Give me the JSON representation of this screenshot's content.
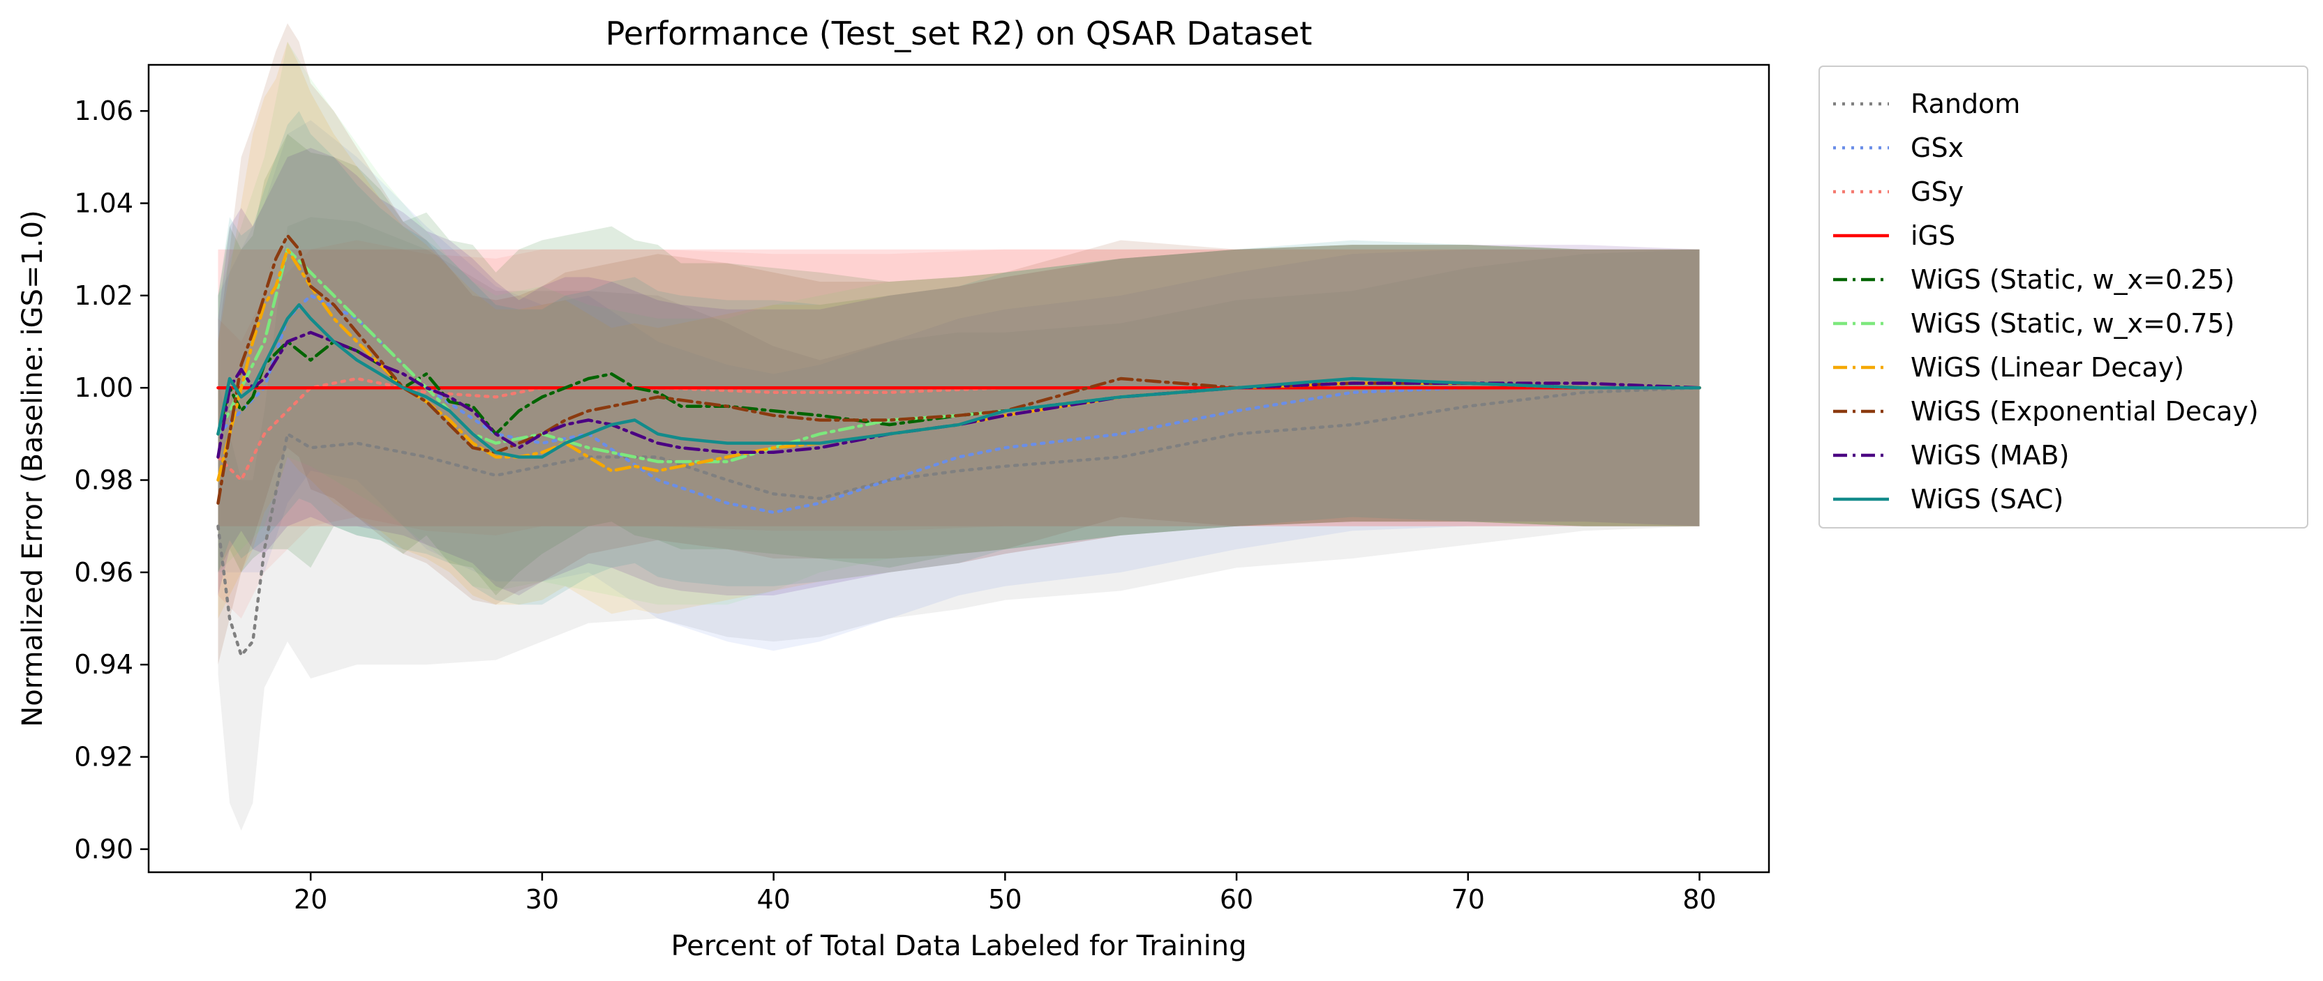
{
  "chart_data": {
    "type": "line",
    "title": "Performance (Test_set R2) on QSAR Dataset",
    "xlabel": "Percent of Total Data Labeled for Training",
    "ylabel": "Normalized Error (Baseline: iGS=1.0)",
    "xlim": [
      13,
      83
    ],
    "ylim": [
      0.895,
      1.07
    ],
    "xticks": [
      20,
      30,
      40,
      50,
      60,
      70,
      80
    ],
    "yticks": [
      0.9,
      0.92,
      0.94,
      0.96,
      0.98,
      1.0,
      1.02,
      1.04,
      1.06
    ],
    "ytick_labels": [
      "0.90",
      "0.92",
      "0.94",
      "0.96",
      "0.98",
      "1.00",
      "1.02",
      "1.04",
      "1.06"
    ],
    "grid": false,
    "legend_position": "outside-right",
    "series": [
      {
        "name": "Random",
        "color": "#808080",
        "dash": "dotted",
        "x": [
          16,
          16.5,
          17,
          17.5,
          18,
          19,
          20,
          22,
          25,
          28,
          30,
          32,
          35,
          38,
          40,
          42,
          45,
          48,
          50,
          55,
          60,
          65,
          70,
          75,
          80
        ],
        "y": [
          0.97,
          0.95,
          0.942,
          0.945,
          0.965,
          0.99,
          0.987,
          0.988,
          0.985,
          0.981,
          0.983,
          0.985,
          0.985,
          0.98,
          0.977,
          0.976,
          0.98,
          0.982,
          0.983,
          0.985,
          0.99,
          0.992,
          0.996,
          0.999,
          1.0
        ],
        "band": [
          0.032,
          0.04,
          0.038,
          0.035,
          0.03,
          0.045,
          0.05,
          0.048,
          0.045,
          0.04,
          0.038,
          0.036,
          0.035,
          0.034,
          0.032,
          0.03,
          0.03,
          0.03,
          0.029,
          0.029,
          0.029,
          0.029,
          0.03,
          0.03,
          0.03
        ]
      },
      {
        "name": "GSx",
        "color": "#6a8ee8",
        "dash": "dotted",
        "x": [
          16,
          17,
          18,
          19,
          20,
          22,
          25,
          28,
          30,
          32,
          35,
          38,
          40,
          42,
          45,
          48,
          50,
          55,
          60,
          65,
          70,
          75,
          80
        ],
        "y": [
          0.99,
          0.995,
          1.0,
          1.015,
          1.02,
          1.015,
          1.0,
          0.99,
          0.988,
          0.99,
          0.98,
          0.975,
          0.973,
          0.975,
          0.98,
          0.985,
          0.987,
          0.99,
          0.995,
          0.999,
          1.0,
          1.0,
          1.0
        ],
        "band": [
          0.03,
          0.035,
          0.04,
          0.04,
          0.038,
          0.035,
          0.035,
          0.032,
          0.03,
          0.03,
          0.03,
          0.03,
          0.03,
          0.03,
          0.03,
          0.03,
          0.03,
          0.03,
          0.03,
          0.03,
          0.03,
          0.03,
          0.03
        ]
      },
      {
        "name": "GSy",
        "color": "#f47a70",
        "dash": "dotted",
        "x": [
          16,
          17,
          18,
          19,
          20,
          22,
          25,
          28,
          30,
          35,
          40,
          45,
          50,
          55,
          60,
          65,
          70,
          75,
          80
        ],
        "y": [
          0.985,
          0.98,
          0.99,
          0.995,
          1.0,
          1.002,
          0.999,
          0.998,
          1.0,
          1.0,
          0.999,
          0.999,
          1.0,
          1.0,
          1.0,
          1.0,
          1.0,
          1.0,
          1.0
        ],
        "band": [
          0.03,
          0.03,
          0.03,
          0.03,
          0.03,
          0.03,
          0.03,
          0.03,
          0.03,
          0.03,
          0.03,
          0.03,
          0.03,
          0.03,
          0.03,
          0.03,
          0.03,
          0.03,
          0.03
        ]
      },
      {
        "name": "iGS",
        "color": "#ff0000",
        "dash": "solid",
        "x": [
          16,
          80
        ],
        "y": [
          1.0,
          1.0
        ],
        "band": [
          0.03,
          0.03
        ]
      },
      {
        "name": "WiGS (Static, w_x=0.25)",
        "color": "#006400",
        "dash": "dashdot",
        "x": [
          16,
          16.5,
          17,
          17.5,
          18,
          19,
          20,
          21,
          22,
          23,
          24,
          25,
          26,
          27,
          28,
          29,
          30,
          31,
          32,
          33,
          34,
          35,
          36,
          38,
          40,
          42,
          45,
          48,
          50,
          55,
          60,
          65,
          70,
          75,
          80
        ],
        "y": [
          0.99,
          1.0,
          0.995,
          0.998,
          1.005,
          1.01,
          1.006,
          1.01,
          1.008,
          1.005,
          1.0,
          1.003,
          0.997,
          0.996,
          0.99,
          0.995,
          0.998,
          1.0,
          1.002,
          1.003,
          1.0,
          0.999,
          0.996,
          0.996,
          0.995,
          0.994,
          0.992,
          0.994,
          0.995,
          0.998,
          1.0,
          1.001,
          1.001,
          1.0,
          1.0
        ],
        "band": [
          0.03,
          0.035,
          0.035,
          0.035,
          0.04,
          0.045,
          0.045,
          0.04,
          0.04,
          0.038,
          0.036,
          0.035,
          0.035,
          0.035,
          0.035,
          0.035,
          0.034,
          0.033,
          0.032,
          0.032,
          0.032,
          0.032,
          0.031,
          0.031,
          0.031,
          0.031,
          0.031,
          0.03,
          0.03,
          0.03,
          0.03,
          0.03,
          0.03,
          0.03,
          0.03
        ]
      },
      {
        "name": "WiGS (Static, w_x=0.75)",
        "color": "#7de87d",
        "dash": "dashdot",
        "x": [
          16,
          17,
          18,
          19,
          20,
          21,
          22,
          23,
          24,
          25,
          26,
          27,
          28,
          30,
          32,
          35,
          38,
          40,
          42,
          45,
          48,
          50,
          55,
          60,
          65,
          70,
          75,
          80
        ],
        "y": [
          0.99,
          1.0,
          1.01,
          1.03,
          1.025,
          1.02,
          1.015,
          1.01,
          1.005,
          1.0,
          0.995,
          0.99,
          0.988,
          0.99,
          0.987,
          0.984,
          0.984,
          0.987,
          0.99,
          0.993,
          0.994,
          0.995,
          0.998,
          1.0,
          1.001,
          1.001,
          1.0,
          1.0
        ],
        "band": [
          0.03,
          0.035,
          0.04,
          0.045,
          0.042,
          0.04,
          0.038,
          0.036,
          0.035,
          0.034,
          0.033,
          0.033,
          0.032,
          0.032,
          0.031,
          0.031,
          0.031,
          0.031,
          0.03,
          0.03,
          0.03,
          0.03,
          0.03,
          0.03,
          0.03,
          0.03,
          0.03,
          0.03
        ]
      },
      {
        "name": "WiGS (Linear Decay)",
        "color": "#f5a800",
        "dash": "dashdot",
        "x": [
          16,
          16.5,
          17,
          17.5,
          18,
          18.5,
          19,
          19.5,
          20,
          21,
          22,
          23,
          24,
          25,
          26,
          27,
          28,
          29,
          30,
          31,
          32,
          33,
          34,
          35,
          36,
          38,
          40,
          42,
          45,
          48,
          50,
          55,
          60,
          65,
          70,
          75,
          80
        ],
        "y": [
          0.98,
          0.99,
          1.0,
          1.01,
          1.018,
          1.022,
          1.03,
          1.026,
          1.022,
          1.015,
          1.01,
          1.005,
          1.0,
          0.997,
          0.993,
          0.988,
          0.985,
          0.985,
          0.986,
          0.988,
          0.985,
          0.982,
          0.983,
          0.982,
          0.983,
          0.985,
          0.987,
          0.988,
          0.99,
          0.992,
          0.994,
          0.998,
          1.0,
          1.001,
          1.001,
          1.0,
          1.0
        ],
        "band": [
          0.03,
          0.035,
          0.04,
          0.045,
          0.045,
          0.045,
          0.045,
          0.044,
          0.042,
          0.04,
          0.038,
          0.036,
          0.035,
          0.034,
          0.033,
          0.033,
          0.032,
          0.032,
          0.032,
          0.031,
          0.031,
          0.031,
          0.031,
          0.031,
          0.031,
          0.031,
          0.031,
          0.03,
          0.03,
          0.03,
          0.03,
          0.03,
          0.03,
          0.03,
          0.03,
          0.03,
          0.03
        ]
      },
      {
        "name": "WiGS (Exponential Decay)",
        "color": "#8b3a0f",
        "dash": "dashdot",
        "x": [
          16,
          16.5,
          17,
          17.5,
          18,
          18.5,
          19,
          19.5,
          20,
          21,
          22,
          23,
          24,
          25,
          26,
          27,
          28,
          29,
          30,
          31,
          32,
          33,
          35,
          38,
          40,
          42,
          45,
          48,
          50,
          55,
          60,
          65,
          70,
          75,
          80
        ],
        "y": [
          0.975,
          0.99,
          1.005,
          1.012,
          1.02,
          1.028,
          1.033,
          1.03,
          1.022,
          1.018,
          1.012,
          1.006,
          1.0,
          0.997,
          0.992,
          0.987,
          0.986,
          0.988,
          0.99,
          0.993,
          0.995,
          0.996,
          0.998,
          0.996,
          0.994,
          0.993,
          0.993,
          0.994,
          0.995,
          1.002,
          1.0,
          1.001,
          1.001,
          1.0,
          1.0
        ],
        "band": [
          0.035,
          0.04,
          0.045,
          0.045,
          0.045,
          0.045,
          0.046,
          0.045,
          0.044,
          0.042,
          0.04,
          0.038,
          0.036,
          0.035,
          0.034,
          0.033,
          0.033,
          0.032,
          0.032,
          0.032,
          0.031,
          0.031,
          0.031,
          0.031,
          0.031,
          0.03,
          0.03,
          0.03,
          0.03,
          0.03,
          0.03,
          0.03,
          0.03,
          0.03,
          0.03
        ]
      },
      {
        "name": "WiGS (MAB)",
        "color": "#4b0082",
        "dash": "dashdot",
        "x": [
          16,
          16.5,
          17,
          17.5,
          18,
          19,
          20,
          21,
          22,
          23,
          24,
          25,
          26,
          27,
          28,
          29,
          30,
          31,
          32,
          33,
          34,
          35,
          36,
          38,
          40,
          42,
          45,
          48,
          50,
          55,
          60,
          65,
          70,
          75,
          80
        ],
        "y": [
          0.985,
          1.0,
          1.004,
          1.0,
          1.002,
          1.01,
          1.012,
          1.01,
          1.008,
          1.005,
          1.003,
          1.0,
          0.998,
          0.995,
          0.99,
          0.987,
          0.99,
          0.992,
          0.993,
          0.992,
          0.99,
          0.988,
          0.987,
          0.986,
          0.986,
          0.987,
          0.99,
          0.992,
          0.994,
          0.998,
          1.0,
          1.001,
          1.001,
          1.001,
          1.0
        ],
        "band": [
          0.03,
          0.035,
          0.035,
          0.035,
          0.038,
          0.04,
          0.04,
          0.04,
          0.038,
          0.036,
          0.035,
          0.034,
          0.034,
          0.033,
          0.033,
          0.032,
          0.032,
          0.032,
          0.031,
          0.031,
          0.031,
          0.031,
          0.031,
          0.031,
          0.031,
          0.03,
          0.03,
          0.03,
          0.03,
          0.03,
          0.03,
          0.03,
          0.03,
          0.03,
          0.03
        ]
      },
      {
        "name": "WiGS (SAC)",
        "color": "#138b8b",
        "dash": "solid",
        "x": [
          16,
          16.5,
          17,
          17.5,
          18,
          18.5,
          19,
          19.5,
          20,
          21,
          22,
          23,
          24,
          25,
          26,
          27,
          28,
          29,
          30,
          31,
          32,
          33,
          34,
          35,
          36,
          38,
          40,
          42,
          45,
          48,
          50,
          55,
          60,
          65,
          70,
          75,
          80
        ],
        "y": [
          0.99,
          1.002,
          0.998,
          1.0,
          1.005,
          1.01,
          1.015,
          1.018,
          1.015,
          1.01,
          1.006,
          1.003,
          1.0,
          0.998,
          0.995,
          0.99,
          0.986,
          0.985,
          0.985,
          0.988,
          0.99,
          0.992,
          0.993,
          0.99,
          0.989,
          0.988,
          0.988,
          0.988,
          0.99,
          0.992,
          0.995,
          0.998,
          1.0,
          1.002,
          1.001,
          1.0,
          1.0
        ],
        "band": [
          0.03,
          0.035,
          0.035,
          0.035,
          0.038,
          0.04,
          0.042,
          0.042,
          0.04,
          0.04,
          0.038,
          0.036,
          0.035,
          0.034,
          0.033,
          0.033,
          0.032,
          0.032,
          0.032,
          0.032,
          0.031,
          0.031,
          0.031,
          0.031,
          0.031,
          0.031,
          0.031,
          0.03,
          0.03,
          0.03,
          0.03,
          0.03,
          0.03,
          0.03,
          0.03,
          0.03,
          0.03
        ]
      }
    ]
  }
}
